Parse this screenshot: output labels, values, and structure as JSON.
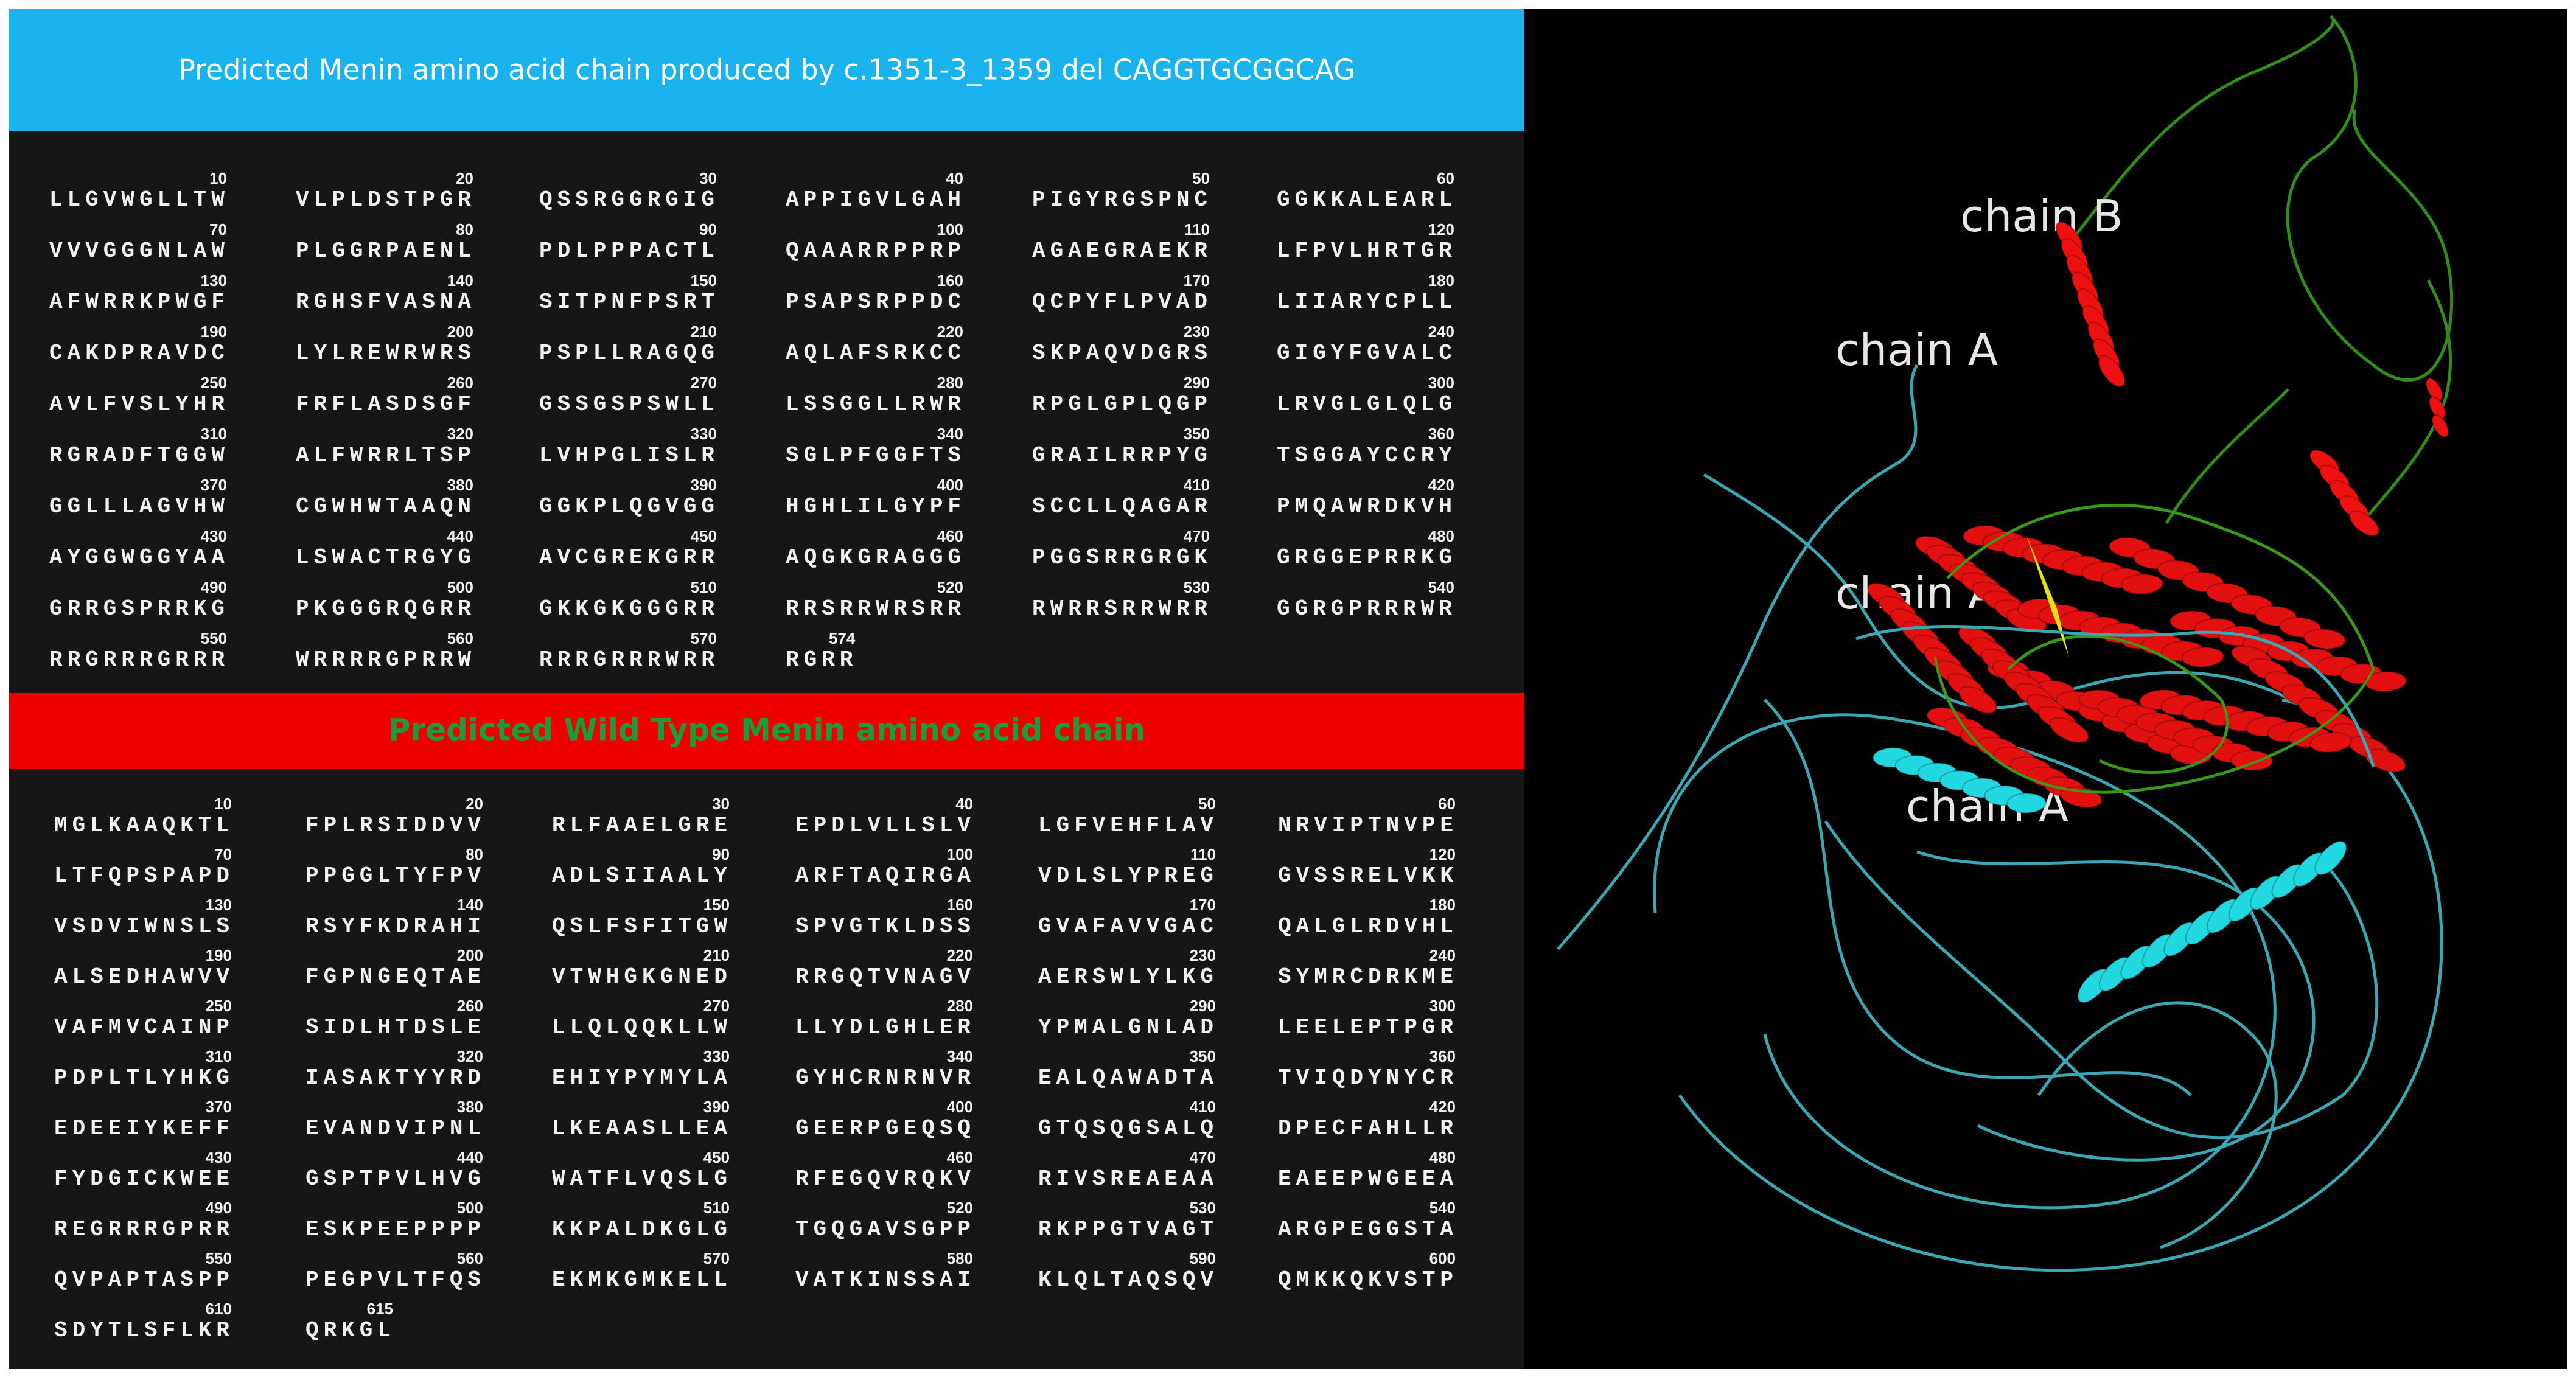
{
  "mutant": {
    "title": "Predicted Menin amino acid chain produced by c.1351-3_1359 del CAGGTGCGGCAG",
    "rows": [
      [
        [
          10,
          "LLGVWGLLTW"
        ],
        [
          20,
          "VLPLDSTPGR"
        ],
        [
          30,
          "QSSRGGRGIG"
        ],
        [
          40,
          "APPIGVLGAH"
        ],
        [
          50,
          "PIGYRGSPNC"
        ],
        [
          60,
          "GGKKALEARL"
        ]
      ],
      [
        [
          70,
          "VVVGGGNLAW"
        ],
        [
          80,
          "PLGGRPAENL"
        ],
        [
          90,
          "PDLPPPACTL"
        ],
        [
          100,
          "QAAARRPPRP"
        ],
        [
          110,
          "AGAEGRAEKR"
        ],
        [
          120,
          "LFPVLHRTGR"
        ]
      ],
      [
        [
          130,
          "AFWRRKPWGF"
        ],
        [
          140,
          "RGHSFVASNA"
        ],
        [
          150,
          "SITPNFPSRT"
        ],
        [
          160,
          "PSAPSRPPDC"
        ],
        [
          170,
          "QCPYFLPVAD"
        ],
        [
          180,
          "LIIARYCPLL"
        ]
      ],
      [
        [
          190,
          "CAKDPRAVDC"
        ],
        [
          200,
          "LYLREWRWRS"
        ],
        [
          210,
          "PSPLLRAGQG"
        ],
        [
          220,
          "AQLAFSRKCC"
        ],
        [
          230,
          "SKPAQVDGRS"
        ],
        [
          240,
          "GIGYFGVALC"
        ]
      ],
      [
        [
          250,
          "AVLFVSLYHR"
        ],
        [
          260,
          "FRFLASDSGF"
        ],
        [
          270,
          "GSSGSPSWLL"
        ],
        [
          280,
          "LSSGGLLRWR"
        ],
        [
          290,
          "RPGLGPLQGP"
        ],
        [
          300,
          "LRVGLGLQLG"
        ]
      ],
      [
        [
          310,
          "RGRADFTGGW"
        ],
        [
          320,
          "ALFWRRLTSP"
        ],
        [
          330,
          "LVHPGLISLR"
        ],
        [
          340,
          "SGLPFGGFTS"
        ],
        [
          350,
          "GRAILRRPYG"
        ],
        [
          360,
          "TSGGAYCCRY"
        ]
      ],
      [
        [
          370,
          "GGLLLAGVHW"
        ],
        [
          380,
          "CGWHWTAAQN"
        ],
        [
          390,
          "GGKPLQGVGG"
        ],
        [
          400,
          "HGHLILGYPF"
        ],
        [
          410,
          "SCCLLQAGAR"
        ],
        [
          420,
          "PMQAWRDKVH"
        ]
      ],
      [
        [
          430,
          "AYGGWGGYAA"
        ],
        [
          440,
          "LSWACTRGYG"
        ],
        [
          450,
          "AVCGREKGRR"
        ],
        [
          460,
          "AQGKGRAGGG"
        ],
        [
          470,
          "PGGSRRGRGK"
        ],
        [
          480,
          "GRGGEPRRKG"
        ]
      ],
      [
        [
          490,
          "GRRGSPRRKG"
        ],
        [
          500,
          "PKGGGRQGRR"
        ],
        [
          510,
          "GKKGKGGGRR"
        ],
        [
          520,
          "RRSRRWRSRR"
        ],
        [
          530,
          "RWRRSRRWRR"
        ],
        [
          540,
          "GGRGPRRRWR"
        ]
      ],
      [
        [
          550,
          "RRGRRRGRRR"
        ],
        [
          560,
          "WRRRRGPRRW"
        ],
        [
          570,
          "RRRGRRRWRR"
        ],
        [
          574,
          "RGRR"
        ]
      ]
    ]
  },
  "wild_type": {
    "title": "Predicted Wild Type Menin amino acid chain",
    "rows": [
      [
        [
          10,
          "MGLKAAQKTL"
        ],
        [
          20,
          "FPLRSIDDVV"
        ],
        [
          30,
          "RLFAAELGRE"
        ],
        [
          40,
          "EPDLVLLSLV"
        ],
        [
          50,
          "LGFVEHFLAV"
        ],
        [
          60,
          "NRVIPTNVPE"
        ]
      ],
      [
        [
          70,
          "LTFQPSPAPD"
        ],
        [
          80,
          "PPGGLTYFPV"
        ],
        [
          90,
          "ADLSIIAALY"
        ],
        [
          100,
          "ARFTAQIRGA"
        ],
        [
          110,
          "VDLSLYPREG"
        ],
        [
          120,
          "GVSSRELVKK"
        ]
      ],
      [
        [
          130,
          "VSDVIWNSLS"
        ],
        [
          140,
          "RSYFKDRAHI"
        ],
        [
          150,
          "QSLFSFITGW"
        ],
        [
          160,
          "SPVGTKLDSS"
        ],
        [
          170,
          "GVAFAVVGAC"
        ],
        [
          180,
          "QALGLRDVHL"
        ]
      ],
      [
        [
          190,
          "ALSEDHAWVV"
        ],
        [
          200,
          "FGPNGEQTAE"
        ],
        [
          210,
          "VTWHGKGNED"
        ],
        [
          220,
          "RRGQTVNAGV"
        ],
        [
          230,
          "AERSWLYLKG"
        ],
        [
          240,
          "SYMRCDRKME"
        ]
      ],
      [
        [
          250,
          "VAFMVCAINP"
        ],
        [
          260,
          "SIDLHTDSLE"
        ],
        [
          270,
          "LLQLQQKLLW"
        ],
        [
          280,
          "LLYDLGHLER"
        ],
        [
          290,
          "YPMALGNLAD"
        ],
        [
          300,
          "LEELEPTPGR"
        ]
      ],
      [
        [
          310,
          "PDPLTLYHKG"
        ],
        [
          320,
          "IASAKTYYRD"
        ],
        [
          330,
          "EHIYPYMYLA"
        ],
        [
          340,
          "GYHCRNRNVR"
        ],
        [
          350,
          "EALQAWADTA"
        ],
        [
          360,
          "TVIQDYNYCR"
        ]
      ],
      [
        [
          370,
          "EDEEIYKEFF"
        ],
        [
          380,
          "EVANDVIPNL"
        ],
        [
          390,
          "LKEAASLLEA"
        ],
        [
          400,
          "GEERPGEQSQ"
        ],
        [
          410,
          "GTQSQGSALQ"
        ],
        [
          420,
          "DPECFAHLLR"
        ]
      ],
      [
        [
          430,
          "FYDGICKWEE"
        ],
        [
          440,
          "GSPTPVLHVG"
        ],
        [
          450,
          "WATFLVQSLG"
        ],
        [
          460,
          "RFEGQVRQKV"
        ],
        [
          470,
          "RIVSREAEAA"
        ],
        [
          480,
          "EAEEPWGEEA"
        ]
      ],
      [
        [
          490,
          "REGRRRGPRR"
        ],
        [
          500,
          "ESKPEEPPPP"
        ],
        [
          510,
          "KKPALDKGLG"
        ],
        [
          520,
          "TGQGAVSGPP"
        ],
        [
          530,
          "RKPPGTVAGT"
        ],
        [
          540,
          "ARGPEGGSTA"
        ]
      ],
      [
        [
          550,
          "QVPAPTASPP"
        ],
        [
          560,
          "PEGPVLTFQS"
        ],
        [
          570,
          "EKMKGMKELL"
        ],
        [
          580,
          "VATKINSSAI"
        ],
        [
          590,
          "KLQLTAQSQV"
        ],
        [
          600,
          "QMKKQKVSTP"
        ]
      ],
      [
        [
          610,
          "SDYTLSFLKR"
        ],
        [
          615,
          "QRKGL"
        ]
      ]
    ]
  },
  "structure": {
    "labels": [
      "chain B",
      "chain A",
      "chain A",
      "chain A"
    ]
  }
}
